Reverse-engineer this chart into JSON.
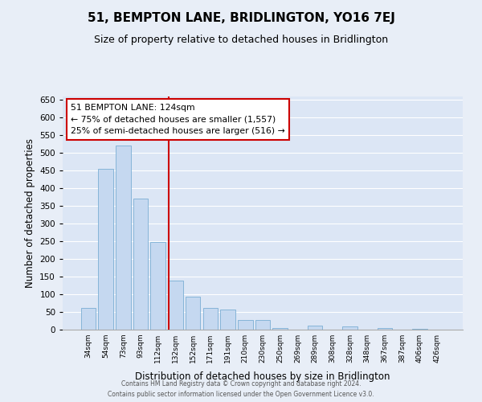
{
  "title": "51, BEMPTON LANE, BRIDLINGTON, YO16 7EJ",
  "subtitle": "Size of property relative to detached houses in Bridlington",
  "xlabel": "Distribution of detached houses by size in Bridlington",
  "ylabel": "Number of detached properties",
  "bar_labels": [
    "34sqm",
    "54sqm",
    "73sqm",
    "93sqm",
    "112sqm",
    "132sqm",
    "152sqm",
    "171sqm",
    "191sqm",
    "210sqm",
    "230sqm",
    "250sqm",
    "269sqm",
    "289sqm",
    "308sqm",
    "328sqm",
    "348sqm",
    "367sqm",
    "387sqm",
    "406sqm",
    "426sqm"
  ],
  "bar_values": [
    62,
    455,
    522,
    370,
    248,
    138,
    93,
    62,
    57,
    27,
    27,
    4,
    0,
    12,
    0,
    10,
    0,
    4,
    0,
    2,
    1
  ],
  "bar_color": "#c5d8f0",
  "bar_edgecolor": "#7aaed4",
  "ylim": [
    0,
    660
  ],
  "yticks": [
    0,
    50,
    100,
    150,
    200,
    250,
    300,
    350,
    400,
    450,
    500,
    550,
    600,
    650
  ],
  "vline_x": 4.62,
  "vline_color": "#cc0000",
  "annotation_title": "51 BEMPTON LANE: 124sqm",
  "annotation_line1": "← 75% of detached houses are smaller (1,557)",
  "annotation_line2": "25% of semi-detached houses are larger (516) →",
  "annotation_box_color": "#ffffff",
  "annotation_box_edgecolor": "#cc0000",
  "footer1": "Contains HM Land Registry data © Crown copyright and database right 2024.",
  "footer2": "Contains public sector information licensed under the Open Government Licence v3.0.",
  "bg_color": "#e8eef7",
  "plot_bg_color": "#dce6f5",
  "grid_color": "#ffffff",
  "title_fontsize": 11,
  "subtitle_fontsize": 9,
  "xlabel_fontsize": 8.5,
  "ylabel_fontsize": 8.5
}
